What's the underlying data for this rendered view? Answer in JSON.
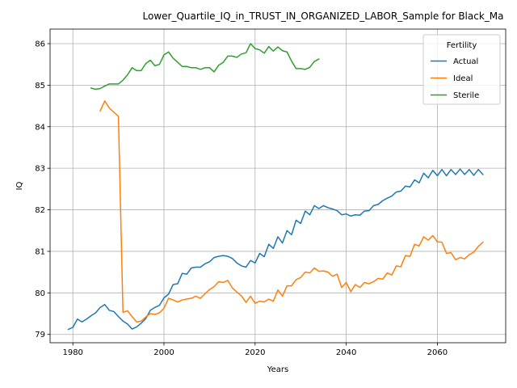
{
  "chart_data": {
    "type": "line",
    "title": "Lower_Quartile_IQ_in_TRUST_IN_ORGANIZED_LABOR_Sample for Black_Ma",
    "xlabel": "Years",
    "ylabel": "IQ",
    "xlim": [
      1975,
      2075
    ],
    "ylim": [
      78.8,
      86.35
    ],
    "xticks": [
      1980,
      2000,
      2020,
      2040,
      2060
    ],
    "yticks": [
      79,
      80,
      81,
      82,
      83,
      84,
      85,
      86
    ],
    "grid": true,
    "legend": {
      "title": "Fertility",
      "placement": "top-right"
    },
    "series": [
      {
        "name": "Actual",
        "color": "#1f77b4",
        "x": [
          1979,
          1980,
          1981,
          1982,
          1983,
          1984,
          1985,
          1986,
          1987,
          1988,
          1989,
          1990,
          1991,
          1992,
          1993,
          1994,
          1995,
          1996,
          1997,
          1998,
          1999,
          2000,
          2001,
          2002,
          2003,
          2004,
          2005,
          2006,
          2007,
          2008,
          2009,
          2010,
          2011,
          2012,
          2013,
          2014,
          2015,
          2016,
          2017,
          2018,
          2019,
          2020,
          2021,
          2022,
          2023,
          2024,
          2025,
          2026,
          2027,
          2028,
          2029,
          2030,
          2031,
          2032,
          2033,
          2034,
          2035,
          2036,
          2037,
          2038,
          2039,
          2040,
          2041,
          2042,
          2043,
          2044,
          2045,
          2046,
          2047,
          2048,
          2049,
          2050,
          2051,
          2052,
          2053,
          2054,
          2055,
          2056,
          2057,
          2058,
          2059,
          2060,
          2061,
          2062,
          2063,
          2064,
          2065,
          2066,
          2067,
          2068,
          2069,
          2070
        ],
        "y": [
          79.12,
          79.17,
          79.37,
          79.3,
          79.37,
          79.45,
          79.52,
          79.65,
          79.72,
          79.58,
          79.55,
          79.43,
          79.32,
          79.25,
          79.13,
          79.18,
          79.27,
          79.38,
          79.58,
          79.65,
          79.7,
          79.88,
          79.97,
          80.2,
          80.22,
          80.47,
          80.45,
          80.6,
          80.62,
          80.62,
          80.7,
          80.75,
          80.85,
          80.88,
          80.9,
          80.88,
          80.83,
          80.72,
          80.65,
          80.62,
          80.78,
          80.72,
          80.95,
          80.87,
          81.17,
          81.07,
          81.35,
          81.2,
          81.5,
          81.4,
          81.75,
          81.67,
          81.97,
          81.88,
          82.1,
          82.03,
          82.1,
          82.05,
          82.02,
          81.98,
          81.88,
          81.9,
          81.85,
          81.88,
          81.87,
          81.97,
          81.98,
          82.1,
          82.13,
          82.22,
          82.28,
          82.33,
          82.43,
          82.45,
          82.57,
          82.55,
          82.72,
          82.65,
          82.88,
          82.77,
          82.95,
          82.82,
          82.97,
          82.82,
          82.97,
          82.85,
          82.98,
          82.85,
          82.97,
          82.83,
          82.97,
          82.85
        ]
      },
      {
        "name": "Ideal",
        "color": "#ff7f0e",
        "x": [
          1986,
          1987,
          1988,
          1989,
          1990,
          1991,
          1992,
          1993,
          1994,
          1995,
          1996,
          1997,
          1998,
          1999,
          2000,
          2001,
          2002,
          2003,
          2004,
          2005,
          2006,
          2007,
          2008,
          2009,
          2010,
          2011,
          2012,
          2013,
          2014,
          2015,
          2016,
          2017,
          2018,
          2019,
          2020,
          2021,
          2022,
          2023,
          2024,
          2025,
          2026,
          2027,
          2028,
          2029,
          2030,
          2031,
          2032,
          2033,
          2034,
          2035,
          2036,
          2037,
          2038,
          2039,
          2040,
          2041,
          2042,
          2043,
          2044,
          2045,
          2046,
          2047,
          2048,
          2049,
          2050,
          2051,
          2052,
          2053,
          2054,
          2055,
          2056,
          2057,
          2058,
          2059,
          2060,
          2061,
          2062,
          2063,
          2064,
          2065,
          2066,
          2067,
          2068,
          2069,
          2070
        ],
        "y": [
          84.38,
          84.62,
          84.45,
          84.35,
          84.25,
          79.53,
          79.57,
          79.43,
          79.3,
          79.32,
          79.42,
          79.5,
          79.48,
          79.52,
          79.63,
          79.87,
          79.83,
          79.78,
          79.83,
          79.85,
          79.87,
          79.92,
          79.87,
          79.98,
          80.08,
          80.15,
          80.27,
          80.25,
          80.3,
          80.12,
          80.02,
          79.93,
          79.77,
          79.92,
          79.75,
          79.8,
          79.78,
          79.85,
          79.8,
          80.07,
          79.92,
          80.17,
          80.17,
          80.32,
          80.37,
          80.5,
          80.48,
          80.6,
          80.52,
          80.53,
          80.5,
          80.4,
          80.45,
          80.13,
          80.25,
          80.03,
          80.2,
          80.13,
          80.25,
          80.22,
          80.27,
          80.35,
          80.33,
          80.48,
          80.43,
          80.65,
          80.63,
          80.9,
          80.88,
          81.17,
          81.13,
          81.35,
          81.27,
          81.38,
          81.23,
          81.22,
          80.95,
          80.97,
          80.8,
          80.85,
          80.82,
          80.92,
          80.98,
          81.12,
          81.22
        ]
      },
      {
        "name": "Sterile",
        "color": "#2ca02c",
        "x": [
          1984,
          1985,
          1986,
          1987,
          1988,
          1989,
          1990,
          1991,
          1992,
          1993,
          1994,
          1995,
          1996,
          1997,
          1998,
          1999,
          2000,
          2001,
          2002,
          2003,
          2004,
          2005,
          2006,
          2007,
          2008,
          2009,
          2010,
          2011,
          2012,
          2013,
          2014,
          2015,
          2016,
          2017,
          2018,
          2019,
          2020,
          2021,
          2022,
          2023,
          2024,
          2025,
          2026,
          2027,
          2028,
          2029,
          2030,
          2031,
          2032,
          2033,
          2034
        ],
        "y": [
          84.93,
          84.9,
          84.92,
          84.98,
          85.03,
          85.03,
          85.03,
          85.12,
          85.25,
          85.42,
          85.35,
          85.35,
          85.52,
          85.6,
          85.47,
          85.5,
          85.73,
          85.8,
          85.65,
          85.55,
          85.45,
          85.45,
          85.42,
          85.42,
          85.38,
          85.42,
          85.42,
          85.32,
          85.48,
          85.55,
          85.7,
          85.7,
          85.67,
          85.75,
          85.78,
          86.0,
          85.88,
          85.85,
          85.77,
          85.93,
          85.82,
          85.92,
          85.83,
          85.8,
          85.58,
          85.4,
          85.4,
          85.38,
          85.43,
          85.57,
          85.63
        ]
      }
    ]
  }
}
